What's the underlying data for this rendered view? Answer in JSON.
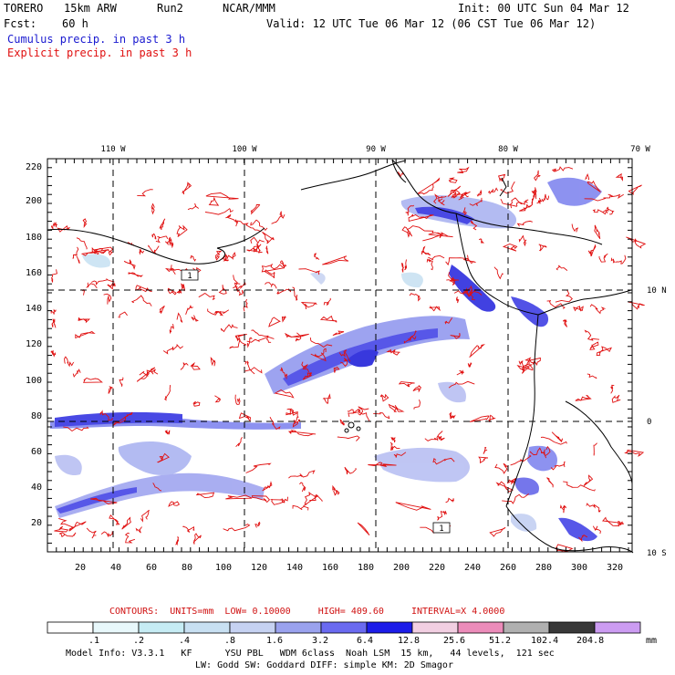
{
  "header": {
    "model": "TORERO",
    "grid": "15km ARW",
    "run": "Run2",
    "org": "NCAR/MMM",
    "init": "Init: 00 UTC Sun 04 Mar 12",
    "fcst_label": "Fcst:",
    "fcst_value": "60 h",
    "valid": "Valid: 12 UTC Tue 06 Mar 12 (06 CST Tue 06 Mar 12)"
  },
  "legend": {
    "cumulus": "Cumulus precip. in past 3 h",
    "explicit": "Explicit precip. in past 3 h",
    "cumulus_color": "#1a1ad0",
    "explicit_color": "#e01010"
  },
  "map": {
    "top_lon_labels": [
      "110 W",
      "100 W",
      "90 W",
      "80 W",
      "70 W"
    ],
    "right_lat_labels": [
      "10 N",
      "0",
      "10 S"
    ],
    "y_ticks": [
      "220",
      "200",
      "180",
      "160",
      "140",
      "120",
      "100",
      "80",
      "60",
      "40",
      "20"
    ],
    "x_ticks": [
      "20",
      "40",
      "60",
      "80",
      "100",
      "120",
      "140",
      "160",
      "180",
      "200",
      "220",
      "240",
      "260",
      "280",
      "300",
      "320"
    ],
    "low_markers": [
      "1",
      "1"
    ]
  },
  "contours": {
    "label": "CONTOURS:",
    "units": "UNITS=mm",
    "low": "LOW= 0.10000",
    "high": "HIGH= 409.60",
    "interval": "INTERVAL=X 4.0000"
  },
  "colorbar": {
    "labels": [
      ".1",
      ".2",
      ".4",
      ".8",
      "1.6",
      "3.2",
      "6.4",
      "12.8",
      "25.6",
      "51.2",
      "102.4",
      "204.8"
    ],
    "unit": "mm",
    "colors": [
      "#ffffff",
      "#e8f8fb",
      "#c6ecf4",
      "#c8e0f2",
      "#c6d2f2",
      "#9aa2ee",
      "#6a6af0",
      "#1c1ce8",
      "#f2cfe2",
      "#ec8cba",
      "#b0b0b0",
      "#383838",
      "#cc9cf2"
    ]
  },
  "footer": {
    "line1": "Model Info: V3.3.1   KF      YSU PBL   WDM 6class  Noah LSM  15 km,   44 levels,  121 sec",
    "line2": "LW: Godd SW: Goddard DIFF: simple KM: 2D Smagor"
  }
}
